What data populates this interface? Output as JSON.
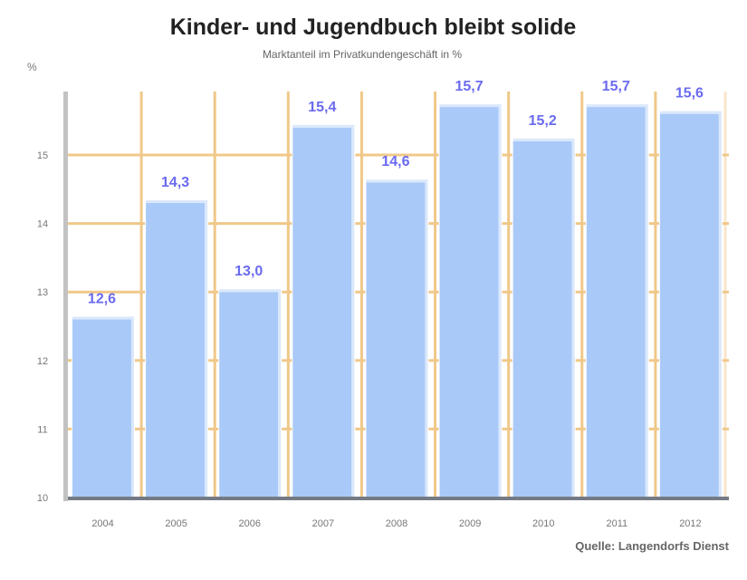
{
  "chart_data": {
    "type": "bar",
    "title": "Kinder- und Jugendbuch bleibt solide",
    "subtitle": "Marktanteil im Privatkundengeschäft in %",
    "ylabel": "%",
    "xlabel": "",
    "categories": [
      "2004",
      "2005",
      "2006",
      "2007",
      "2008",
      "2009",
      "2010",
      "2011",
      "2012"
    ],
    "values": [
      12.6,
      14.3,
      13.0,
      15.4,
      14.6,
      15.7,
      15.2,
      15.7,
      15.6
    ],
    "value_labels": [
      "12,6",
      "14,3",
      "13,0",
      "15,4",
      "14,6",
      "15,7",
      "15,2",
      "15,7",
      "15,6"
    ],
    "ylim": [
      10,
      15.9
    ],
    "yticks": [
      10,
      11,
      12,
      13,
      14,
      15
    ],
    "ytick_labels": [
      "10",
      "11",
      "12",
      "13",
      "14",
      "15"
    ],
    "grid": true,
    "legend": "none",
    "source": "Quelle: Langendorfs Dienst",
    "colors": {
      "bar": "#a9c9f8",
      "bar_highlight": "#dbe8fb",
      "grid": "#f0c889",
      "axis_left": "#c2c2c2",
      "axis_bottom": "#757b85",
      "label": "#6a6af0"
    }
  }
}
